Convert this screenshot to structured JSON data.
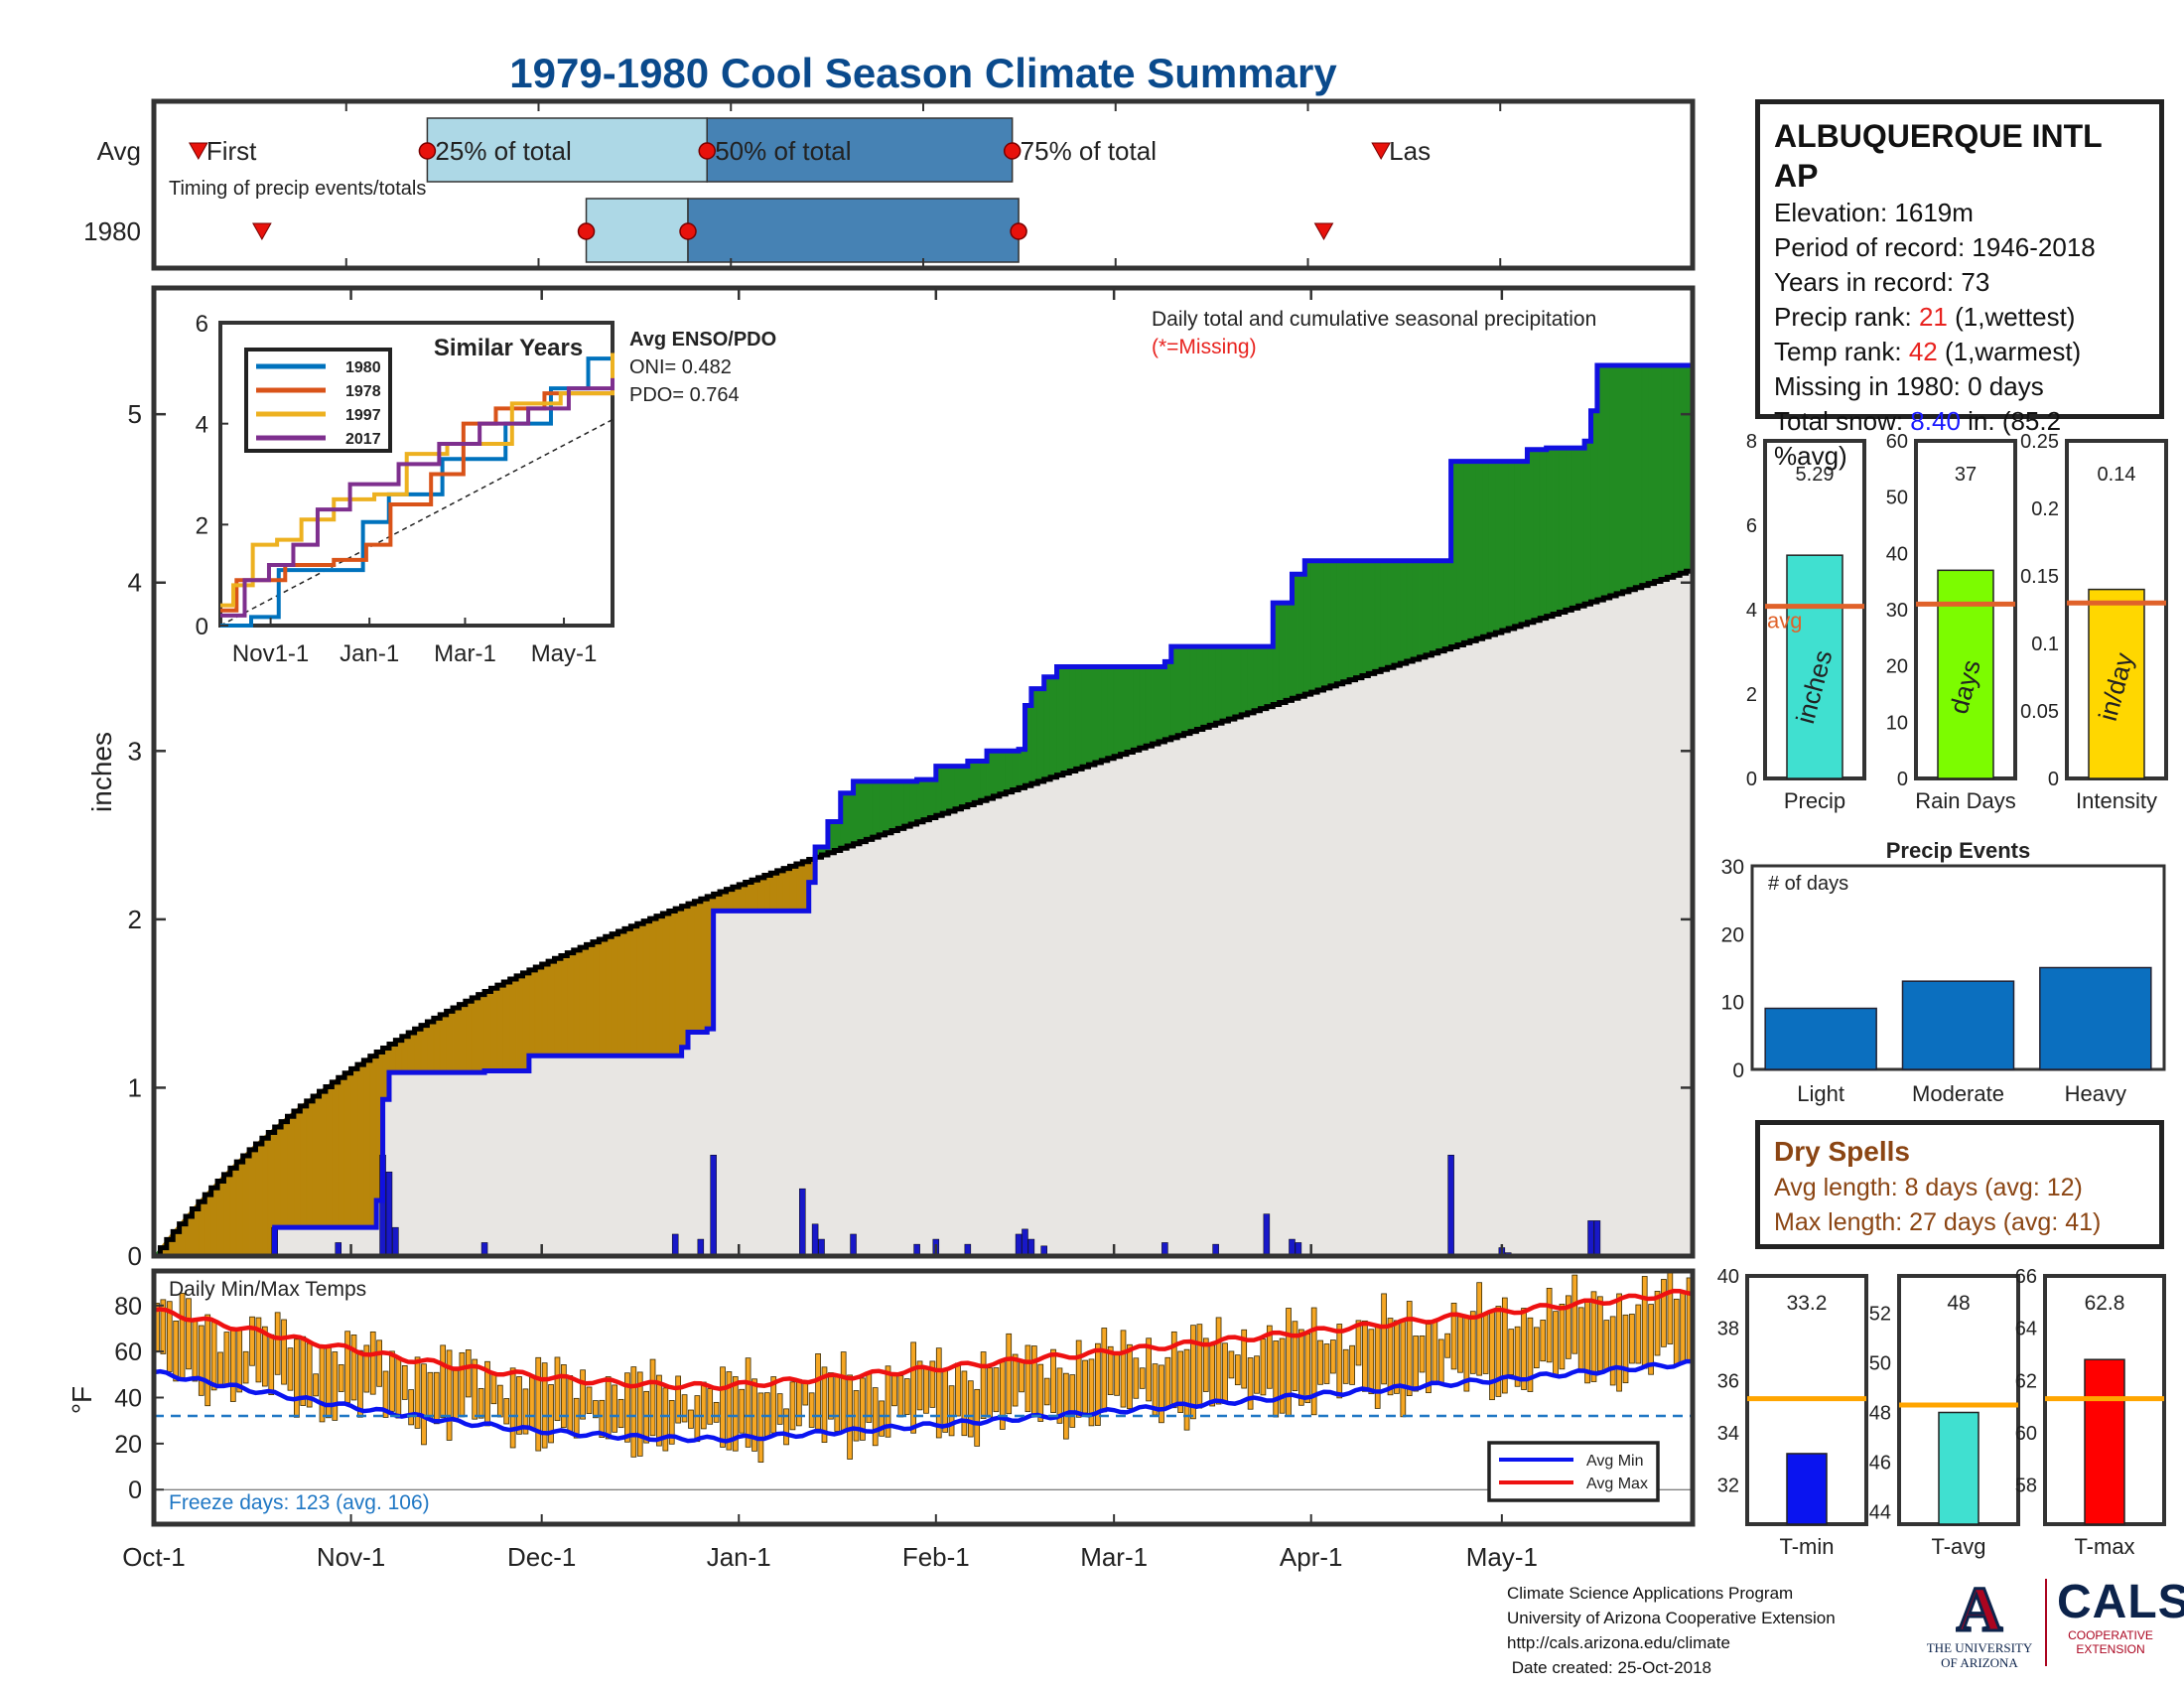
{
  "title": "1979-1980 Cool Season Climate Summary",
  "colors": {
    "title": "#0a4a8c",
    "deficit": "#b8860b",
    "surplus": "#228b22",
    "normal_fill": "#e8e6e3",
    "cum_line": "#1010e0",
    "avg_line": "#000000",
    "temp_bar": "#f5a623",
    "avg_min": "#0a14f0",
    "avg_max": "#ee1111",
    "light_blue": "#add8e6",
    "steel_blue": "#4682b4",
    "avg_bar_line": "#e0622a",
    "event_bar": "#0b6fbf"
  },
  "timing_panel": {
    "row_labels": [
      "Avg",
      "1980"
    ],
    "avg_labels": [
      "First",
      "25% of total",
      "50% of total",
      "75% of total",
      "Las"
    ],
    "subtitle": "Timing of precip events/totals",
    "avg_days": {
      "first": 7,
      "p25": 43,
      "p50": 87,
      "p75": 135,
      "last": 193
    },
    "year_days": {
      "first": 17,
      "p25": 68,
      "p50": 84,
      "p75": 136,
      "last": 184
    }
  },
  "station": {
    "name": "ALBUQUERQUE INTL AP",
    "name_line1": "ALBUQUERQUE INTL",
    "name_line2": "AP",
    "elevation": "Elevation: 1619m",
    "period": "Period of record: 1946-2018",
    "years": "Years in record: 73",
    "precip_rank_label": "Precip rank: ",
    "precip_rank_value": "21",
    "precip_rank_note": " (1,wettest)",
    "temp_rank_label": "Temp rank: ",
    "temp_rank_value": "42",
    "temp_rank_note": " (1,warmest)",
    "missing": "Missing in 1980: 0 days",
    "snow_label": "Total snow: ",
    "snow_value": "8.40",
    "snow_note": " in. (85.2",
    "snow_note2": "%avg)"
  },
  "main_chart": {
    "ylabel": "inches",
    "ytick_labels": [
      "0",
      "1",
      "2",
      "3",
      "4",
      "5"
    ],
    "note": "Daily total and cumulative seasonal precipitation",
    "missing_note": "(*=Missing)",
    "x_tick_labels": [
      "Oct-1",
      "Nov-1",
      "Dec-1",
      "Jan-1",
      "Feb-1",
      "Mar-1",
      "Apr-1",
      "May-1"
    ],
    "x_tick_days": [
      0,
      31,
      61,
      92,
      123,
      151,
      182,
      212
    ],
    "days": 242,
    "ylim": [
      0,
      5.75
    ],
    "avg_end": 4.08,
    "cumulative_steps": [
      [
        0,
        0
      ],
      [
        19,
        0.17
      ],
      [
        35,
        0.33
      ],
      [
        36,
        0.93
      ],
      [
        37,
        1.09
      ],
      [
        52,
        1.1
      ],
      [
        59,
        1.19
      ],
      [
        81,
        1.19
      ],
      [
        83,
        1.24
      ],
      [
        84,
        1.33
      ],
      [
        87,
        1.35
      ],
      [
        88,
        1.65
      ],
      [
        88,
        2.05
      ],
      [
        102,
        2.05
      ],
      [
        103,
        2.22
      ],
      [
        104,
        2.43
      ],
      [
        106,
        2.58
      ],
      [
        108,
        2.75
      ],
      [
        110,
        2.82
      ],
      [
        120,
        2.83
      ],
      [
        123,
        2.91
      ],
      [
        128,
        2.94
      ],
      [
        131,
        3.0
      ],
      [
        136,
        3.01
      ],
      [
        137,
        3.27
      ],
      [
        138,
        3.37
      ],
      [
        140,
        3.44
      ],
      [
        142,
        3.5
      ],
      [
        159,
        3.53
      ],
      [
        160,
        3.62
      ],
      [
        175,
        3.62
      ],
      [
        176,
        3.88
      ],
      [
        179,
        4.05
      ],
      [
        181,
        4.13
      ],
      [
        203,
        4.13
      ],
      [
        204,
        4.72
      ],
      [
        214,
        4.72
      ],
      [
        216,
        4.79
      ],
      [
        219,
        4.8
      ],
      [
        225,
        4.84
      ],
      [
        226,
        5.02
      ],
      [
        227,
        5.29
      ],
      [
        242,
        5.29
      ]
    ],
    "daily_bars": [
      [
        19,
        0.17
      ],
      [
        29,
        0.08
      ],
      [
        36,
        0.6
      ],
      [
        37,
        0.5
      ],
      [
        38,
        0.17
      ],
      [
        52,
        0.08
      ],
      [
        82,
        0.13
      ],
      [
        86,
        0.1
      ],
      [
        88,
        0.6
      ],
      [
        102,
        0.4
      ],
      [
        104,
        0.19
      ],
      [
        105,
        0.1
      ],
      [
        110,
        0.13
      ],
      [
        120,
        0.07
      ],
      [
        123,
        0.1
      ],
      [
        128,
        0.07
      ],
      [
        136,
        0.13
      ],
      [
        137,
        0.16
      ],
      [
        138,
        0.1
      ],
      [
        140,
        0.06
      ],
      [
        159,
        0.08
      ],
      [
        167,
        0.07
      ],
      [
        175,
        0.25
      ],
      [
        179,
        0.1
      ],
      [
        180,
        0.08
      ],
      [
        204,
        0.6
      ],
      [
        212,
        0.05
      ],
      [
        213,
        0.02
      ],
      [
        219,
        0.01
      ],
      [
        226,
        0.21
      ],
      [
        227,
        0.21
      ]
    ]
  },
  "inset": {
    "title": "Similar Years",
    "ytick_labels": [
      "0",
      "2",
      "4",
      "6"
    ],
    "xtick_labels": [
      "Nov1-1",
      "Jan-1",
      "Mar-1",
      "May-1"
    ],
    "legend": [
      "1980",
      "1978",
      "1997",
      "2017"
    ],
    "legend_colors": [
      "#0072bd",
      "#d95319",
      "#edb120",
      "#7e2f8e"
    ],
    "enso_title": "Avg ENSO/PDO",
    "oni": "ONI= 0.482",
    "pdo": "PDO= 0.764"
  },
  "temp_chart": {
    "title": "Daily Min/Max Temps",
    "ylabel": "°F",
    "ytick_labels": [
      "0",
      "20",
      "40",
      "60",
      "80"
    ],
    "freeze": "Freeze days: 123 (avg. 106)",
    "legend": [
      "Avg Min",
      "Avg Max"
    ],
    "freeze_line": 32,
    "avg_max_start": 78,
    "avg_max_min": 45,
    "avg_max_end": 86,
    "avg_min_start": 51,
    "avg_min_min": 22,
    "avg_min_end": 55
  },
  "small_bars": [
    {
      "xlabel": "Precip",
      "inner": "inches",
      "value_label": "5.29",
      "value": 5.29,
      "avg": 4.08,
      "avg_label": "avg",
      "ylim": [
        0,
        8
      ],
      "ticks": [
        "0",
        "2",
        "4",
        "6",
        "8"
      ],
      "color": "#40e0d0"
    },
    {
      "xlabel": "Rain Days",
      "inner": "days",
      "value_label": "37",
      "value": 37,
      "avg": 31,
      "ylim": [
        0,
        60
      ],
      "ticks": [
        "0",
        "10",
        "20",
        "30",
        "40",
        "50",
        "60"
      ],
      "color": "#7cfc00"
    },
    {
      "xlabel": "Intensity",
      "inner": "in/day",
      "value_label": "0.14",
      "value": 0.14,
      "avg": 0.13,
      "ylim": [
        0,
        0.25
      ],
      "ticks": [
        "0",
        "0.05",
        "0.1",
        "0.15",
        "0.2",
        "0.25"
      ],
      "color": "#ffd700"
    }
  ],
  "precip_events": {
    "title": "Precip Events",
    "inner_label": "# of days",
    "categories": [
      "Light",
      "Moderate",
      "Heavy"
    ],
    "values": [
      9,
      13,
      15
    ],
    "ylim": [
      0,
      30
    ],
    "ticks": [
      "0",
      "10",
      "20",
      "30"
    ]
  },
  "dry_spells": {
    "title": "Dry Spells",
    "avg": "Avg length: 8 days (avg: 12)",
    "max": "Max length: 27 days (avg: 41)"
  },
  "temp_bars": [
    {
      "xlabel": "T-min",
      "value_label": "33.2",
      "value": 33.2,
      "avg": 35.3,
      "ylim": [
        30.5,
        40
      ],
      "ticks": [
        "32",
        "34",
        "36",
        "38",
        "40"
      ],
      "color": "#0a14f0"
    },
    {
      "xlabel": "T-avg",
      "value_label": "48",
      "value": 48.0,
      "avg": 48.3,
      "ylim": [
        43.5,
        53.5
      ],
      "ticks": [
        "44",
        "46",
        "48",
        "50",
        "52"
      ],
      "color": "#40e0d0"
    },
    {
      "xlabel": "T-max",
      "value_label": "62.8",
      "value": 62.8,
      "avg": 61.3,
      "ylim": [
        56.5,
        66
      ],
      "ticks": [
        "58",
        "60",
        "62",
        "64",
        "66"
      ],
      "color": "#ff0000"
    }
  ],
  "footer": {
    "line1": "Climate Science Applications Program",
    "line2": "University of Arizona Cooperative Extension",
    "line3": "http://cals.arizona.edu/climate",
    "line4": " Date created: 25-Oct-2018"
  },
  "logos": {
    "ua_letter": "A",
    "ua_line1": "THE UNIVERSITY",
    "ua_line2": "OF ARIZONA",
    "cals": "CALS",
    "cals_line1": "COOPERATIVE",
    "cals_line2": "EXTENSION"
  }
}
